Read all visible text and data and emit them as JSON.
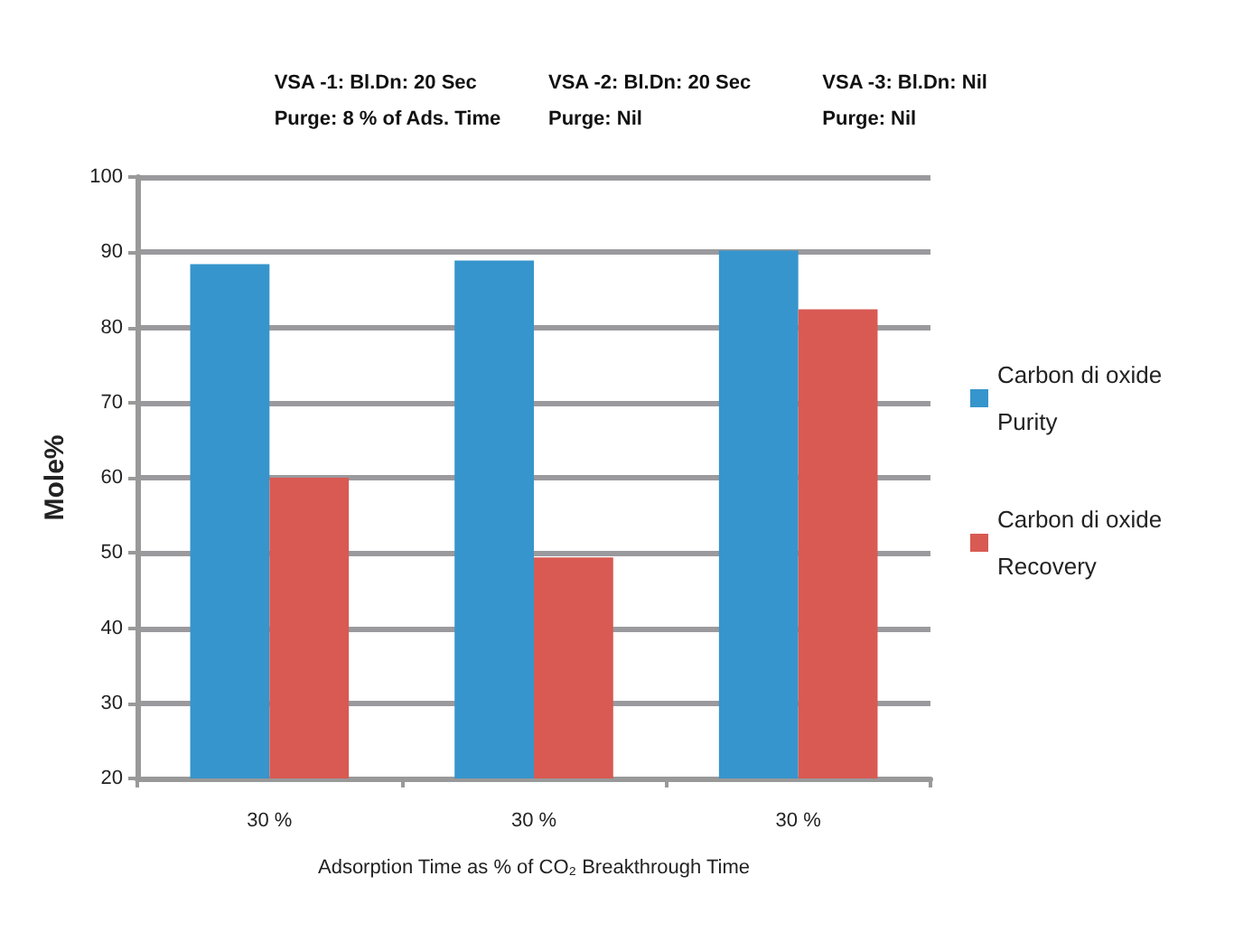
{
  "chart_data": {
    "type": "bar",
    "ylabel": "Mole%",
    "xlabel": "Adsorption Time as % of CO₂ Breakthrough Time",
    "categories": [
      "30 %",
      "30 %",
      "30 %"
    ],
    "series": [
      {
        "name": "Carbon di oxide Purity",
        "color": "#3695cc",
        "values": [
          88.4,
          88.9,
          90.2
        ]
      },
      {
        "name": "Carbon di oxide Recovery",
        "color": "#d85a53",
        "values": [
          60,
          49.4,
          82.4
        ]
      }
    ],
    "annotations": [
      "VSA -1: Bl.Dn: 20 Sec\nPurge: 8 % of Ads. Time",
      "VSA -2: Bl.Dn: 20 Sec\nPurge: Nil",
      "VSA -3: Bl.Dn: Nil\nPurge: Nil"
    ],
    "ylim": [
      20,
      100
    ],
    "yticks": [
      20,
      30,
      40,
      50,
      60,
      70,
      80,
      90,
      100
    ],
    "grid": "y",
    "legend": "right"
  }
}
